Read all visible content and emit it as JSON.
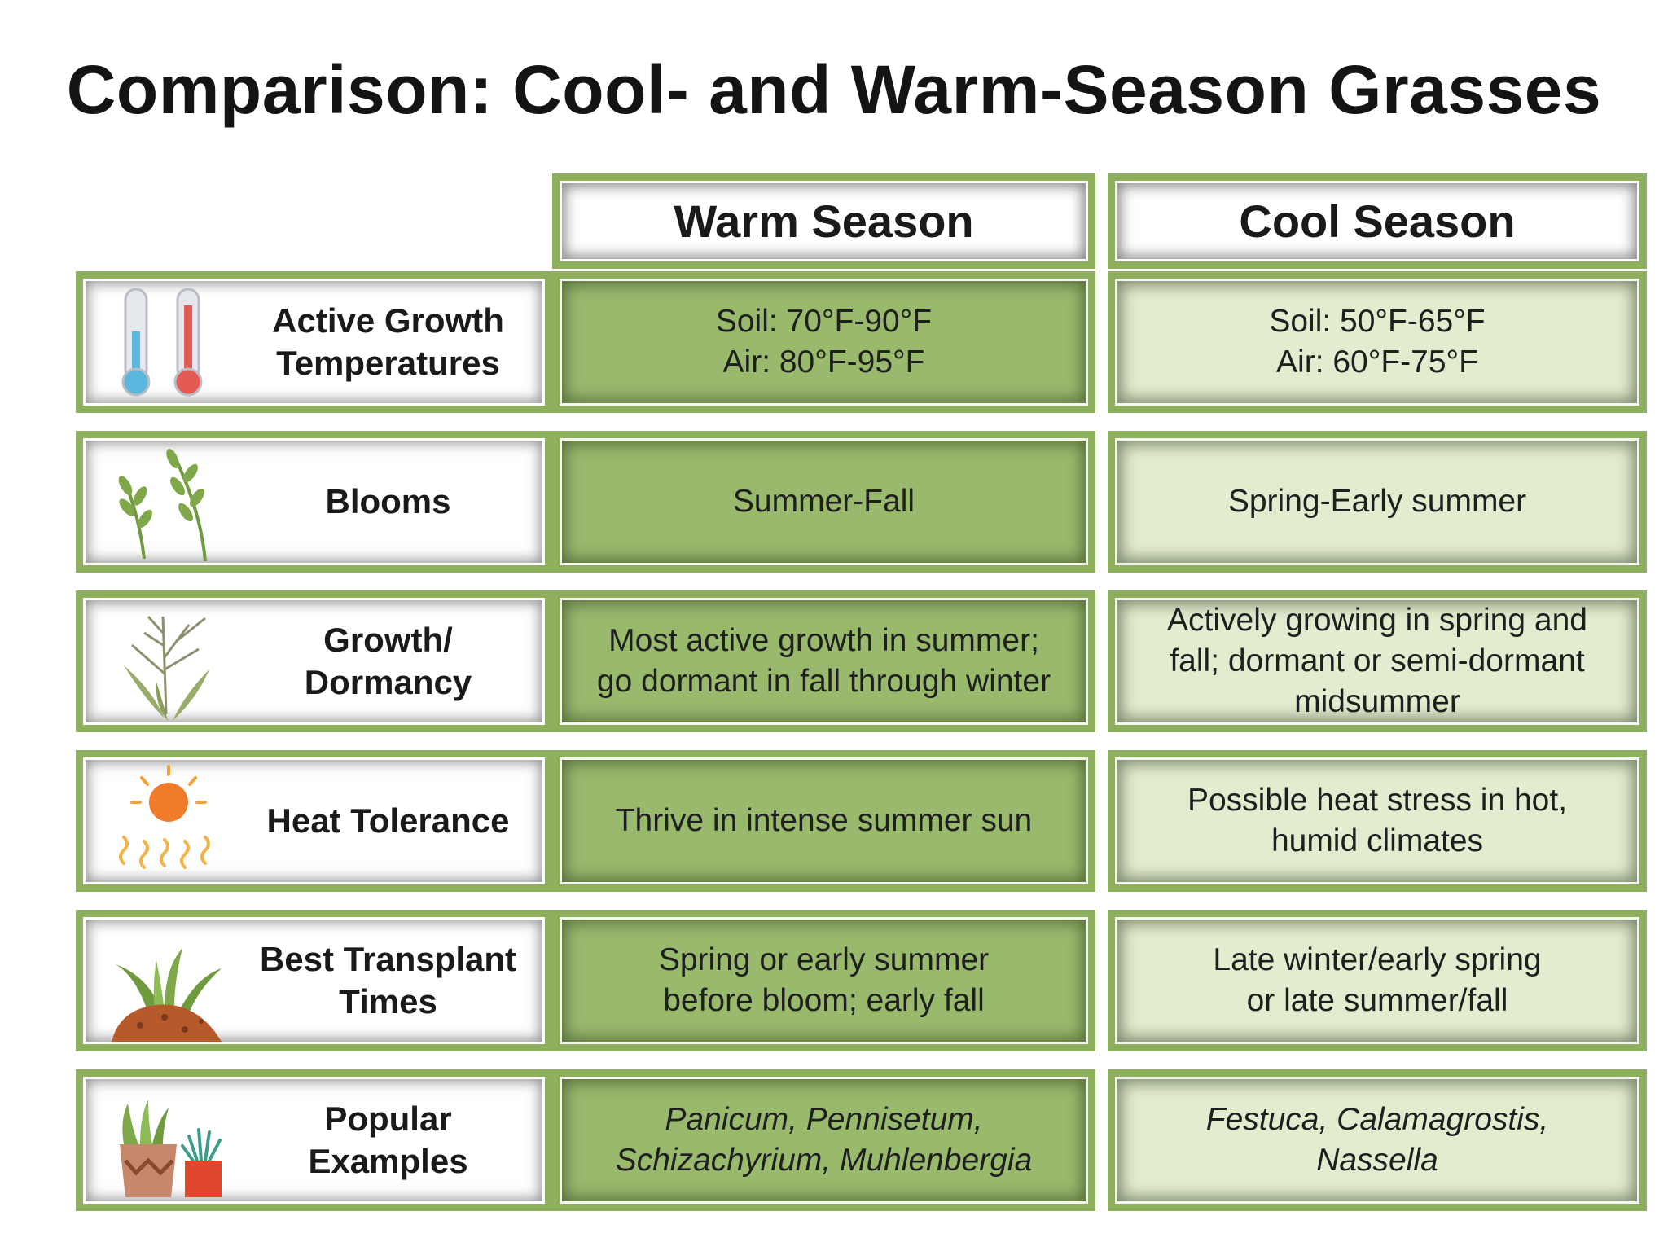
{
  "title": "Comparison: Cool- and Warm-Season Grasses",
  "headers": {
    "warm": "Warm Season",
    "cool": "Cool Season"
  },
  "colors": {
    "frame": "#8daf5e",
    "warm_fill": "#99ba6d",
    "cool_fill": "#e2eccf"
  },
  "rows": [
    {
      "icon": "thermometers-icon",
      "label": [
        "Active Growth",
        "Temperatures"
      ],
      "warm": [
        "Soil: 70°F-90°F",
        "Air: 80°F-95°F"
      ],
      "cool": [
        "Soil: 50°F-65°F",
        "Air: 60°F-75°F"
      ]
    },
    {
      "icon": "blooming-stems-icon",
      "label": [
        "Blooms"
      ],
      "warm": [
        "Summer-Fall"
      ],
      "cool": [
        "Spring-Early summer"
      ]
    },
    {
      "icon": "grass-plant-icon",
      "label": [
        "Growth/",
        "Dormancy"
      ],
      "warm": [
        "Most active growth in summer;",
        "go dormant in fall through winter"
      ],
      "cool": [
        "Actively growing in spring and",
        "fall; dormant or semi-dormant",
        "midsummer"
      ]
    },
    {
      "icon": "sun-heat-icon",
      "label": [
        "Heat Tolerance"
      ],
      "warm": [
        "Thrive in intense summer sun"
      ],
      "cool": [
        "Possible heat stress in hot,",
        "humid climates"
      ]
    },
    {
      "icon": "transplant-icon",
      "label": [
        "Best Transplant",
        "Times"
      ],
      "warm": [
        "Spring or early summer",
        "before bloom; early fall"
      ],
      "cool": [
        "Late winter/early spring",
        "or late summer/fall"
      ]
    },
    {
      "icon": "potted-grasses-icon",
      "label": [
        "Popular",
        "Examples"
      ],
      "warm": [
        "Panicum, Pennisetum,",
        "Schizachyrium, Muhlenbergia"
      ],
      "cool": [
        "Festuca, Calamagrostis,",
        "Nassella"
      ]
    }
  ]
}
